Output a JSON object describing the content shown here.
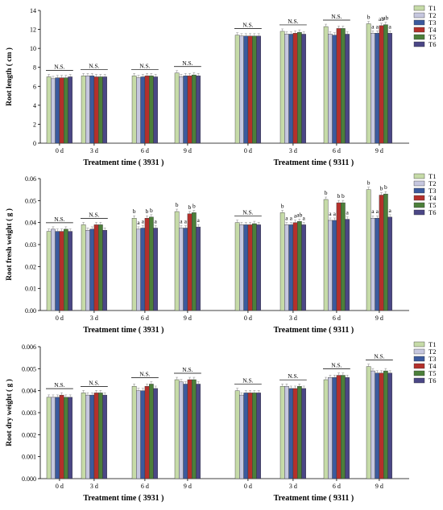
{
  "legend": [
    "T1",
    "T2",
    "T3",
    "T4",
    "T5",
    "T6"
  ],
  "colors": {
    "T1": "#c6dba8",
    "T2": "#c6c7df",
    "T3": "#3b5a9e",
    "T4": "#b4302b",
    "T5": "#4c7f3a",
    "T6": "#4b4786"
  },
  "chart_data": [
    {
      "type": "bar",
      "ylabel": "Root length ( cm )",
      "ylim": [
        0,
        14
      ],
      "yticks": [
        "0",
        "2",
        "4",
        "6",
        "8",
        "10",
        "12",
        "14"
      ],
      "grid": false,
      "legend_position": "right",
      "groups": [
        {
          "xlabel": "Treatment time ( 3931 )",
          "categories": [
            "0 d",
            "3 d",
            "6 d",
            "9 d"
          ],
          "series": [
            {
              "name": "T1",
              "values": [
                7.0,
                7.1,
                7.1,
                7.4
              ]
            },
            {
              "name": "T2",
              "values": [
                6.8,
                7.1,
                6.9,
                7.0
              ]
            },
            {
              "name": "T3",
              "values": [
                6.9,
                7.1,
                7.0,
                7.1
              ]
            },
            {
              "name": "T4",
              "values": [
                6.9,
                7.0,
                7.1,
                7.1
              ]
            },
            {
              "name": "T5",
              "values": [
                6.9,
                7.0,
                7.1,
                7.2
              ]
            },
            {
              "name": "T6",
              "values": [
                7.0,
                7.0,
                7.0,
                7.1
              ]
            }
          ],
          "annotations": [
            {
              "category": "0 d",
              "text": "N.S."
            },
            {
              "category": "3 d",
              "text": "N.S."
            },
            {
              "category": "6 d",
              "text": "N.S."
            },
            {
              "category": "9 d",
              "text": "N.S."
            }
          ]
        },
        {
          "xlabel": "Treatment time ( 9311 )",
          "categories": [
            "0 d",
            "3 d",
            "6 d",
            "9 d"
          ],
          "series": [
            {
              "name": "T1",
              "values": [
                11.4,
                11.8,
                12.3,
                12.6
              ]
            },
            {
              "name": "T2",
              "values": [
                11.3,
                11.5,
                11.5,
                11.6
              ]
            },
            {
              "name": "T3",
              "values": [
                11.3,
                11.5,
                11.4,
                11.6
              ]
            },
            {
              "name": "T4",
              "values": [
                11.3,
                11.6,
                12.1,
                12.4
              ]
            },
            {
              "name": "T5",
              "values": [
                11.3,
                11.7,
                12.1,
                12.5
              ]
            },
            {
              "name": "T6",
              "values": [
                11.3,
                11.5,
                11.5,
                11.6
              ]
            }
          ],
          "annotations": [
            {
              "category": "0 d",
              "text": "N.S."
            },
            {
              "category": "3 d",
              "text": "N.S."
            },
            {
              "category": "6 d",
              "text": "N.S."
            },
            {
              "category": "9 d",
              "letters": [
                "b",
                "a",
                "a",
                "ab",
                "ab",
                "a"
              ]
            }
          ]
        }
      ]
    },
    {
      "type": "bar",
      "ylabel": "Root fresh weight ( g )",
      "ylim": [
        0,
        0.06
      ],
      "yticks": [
        "0.00",
        "0.01",
        "0.02",
        "0.03",
        "0.04",
        "0.05",
        "0.06"
      ],
      "grid": false,
      "legend_position": "right",
      "groups": [
        {
          "xlabel": "Treatment time ( 3931 )",
          "categories": [
            "0 d",
            "3 d",
            "6 d",
            "9 d"
          ],
          "series": [
            {
              "name": "T1",
              "values": [
                0.036,
                0.039,
                0.042,
                0.045
              ]
            },
            {
              "name": "T2",
              "values": [
                0.037,
                0.0365,
                0.037,
                0.0375
              ]
            },
            {
              "name": "T3",
              "values": [
                0.036,
                0.037,
                0.0375,
                0.0375
              ]
            },
            {
              "name": "T4",
              "values": [
                0.036,
                0.039,
                0.042,
                0.044
              ]
            },
            {
              "name": "T5",
              "values": [
                0.037,
                0.039,
                0.0425,
                0.0445
              ]
            },
            {
              "name": "T6",
              "values": [
                0.036,
                0.0365,
                0.0375,
                0.038
              ]
            }
          ],
          "annotations": [
            {
              "category": "0 d",
              "text": "N.S."
            },
            {
              "category": "3 d",
              "text": "N.S."
            },
            {
              "category": "6 d",
              "letters": [
                "b",
                "a",
                "a",
                "b",
                "b",
                "a"
              ]
            },
            {
              "category": "9 d",
              "letters": [
                "b",
                "a",
                "a",
                "b",
                "b",
                "a"
              ]
            }
          ]
        },
        {
          "xlabel": "Treatment time ( 9311 )",
          "categories": [
            "0 d",
            "3 d",
            "6 d",
            "9 d"
          ],
          "series": [
            {
              "name": "T1",
              "values": [
                0.04,
                0.0445,
                0.0505,
                0.055
              ]
            },
            {
              "name": "T2",
              "values": [
                0.039,
                0.039,
                0.041,
                0.042
              ]
            },
            {
              "name": "T3",
              "values": [
                0.039,
                0.039,
                0.041,
                0.042
              ]
            },
            {
              "name": "T4",
              "values": [
                0.039,
                0.04,
                0.049,
                0.0525
              ]
            },
            {
              "name": "T5",
              "values": [
                0.0395,
                0.0405,
                0.049,
                0.053
              ]
            },
            {
              "name": "T6",
              "values": [
                0.039,
                0.039,
                0.0415,
                0.0425
              ]
            }
          ],
          "annotations": [
            {
              "category": "0 d",
              "text": "N.S."
            },
            {
              "category": "3 d",
              "letters": [
                "b",
                "a",
                "a",
                "a",
                "ab",
                "a"
              ]
            },
            {
              "category": "6 d",
              "letters": [
                "b",
                "a",
                "a",
                "b",
                "b",
                "a"
              ]
            },
            {
              "category": "9 d",
              "letters": [
                "b",
                "a",
                "a",
                "b",
                "b",
                "a"
              ]
            }
          ]
        }
      ]
    },
    {
      "type": "bar",
      "ylabel": "Root dry weight ( g )",
      "ylim": [
        0,
        0.006
      ],
      "yticks": [
        "0.000",
        "0.001",
        "0.002",
        "0.003",
        "0.004",
        "0.005",
        "0.006"
      ],
      "grid": false,
      "legend_position": "right",
      "groups": [
        {
          "xlabel": "Treatment time ( 3931 )",
          "categories": [
            "0 d",
            "3 d",
            "6 d",
            "9 d"
          ],
          "series": [
            {
              "name": "T1",
              "values": [
                0.0037,
                0.0039,
                0.0042,
                0.0045
              ]
            },
            {
              "name": "T2",
              "values": [
                0.0037,
                0.0038,
                0.004,
                0.0044
              ]
            },
            {
              "name": "T3",
              "values": [
                0.0037,
                0.0038,
                0.004,
                0.0043
              ]
            },
            {
              "name": "T4",
              "values": [
                0.0038,
                0.0039,
                0.0042,
                0.0045
              ]
            },
            {
              "name": "T5",
              "values": [
                0.0037,
                0.0039,
                0.0043,
                0.0045
              ]
            },
            {
              "name": "T6",
              "values": [
                0.0037,
                0.0038,
                0.0041,
                0.0043
              ]
            }
          ],
          "annotations": [
            {
              "category": "0 d",
              "text": "N.S."
            },
            {
              "category": "3 d",
              "text": "N.S."
            },
            {
              "category": "6 d",
              "text": "N.S."
            },
            {
              "category": "9 d",
              "text": "N.S."
            }
          ]
        },
        {
          "xlabel": "Treatment time ( 9311 )",
          "categories": [
            "0 d",
            "3 d",
            "6 d",
            "9 d"
          ],
          "series": [
            {
              "name": "T1",
              "values": [
                0.004,
                0.0042,
                0.0045,
                0.0051
              ]
            },
            {
              "name": "T2",
              "values": [
                0.0038,
                0.0042,
                0.0046,
                0.0049
              ]
            },
            {
              "name": "T3",
              "values": [
                0.0039,
                0.0041,
                0.0046,
                0.0048
              ]
            },
            {
              "name": "T4",
              "values": [
                0.0039,
                0.0041,
                0.0047,
                0.0048
              ]
            },
            {
              "name": "T5",
              "values": [
                0.0039,
                0.0042,
                0.0047,
                0.0049
              ]
            },
            {
              "name": "T6",
              "values": [
                0.0039,
                0.0041,
                0.0046,
                0.0048
              ]
            }
          ],
          "annotations": [
            {
              "category": "0 d",
              "text": "N.S."
            },
            {
              "category": "3 d",
              "text": "N.S."
            },
            {
              "category": "6 d",
              "text": "N.S."
            },
            {
              "category": "9 d",
              "text": "N.S."
            }
          ]
        }
      ]
    }
  ]
}
